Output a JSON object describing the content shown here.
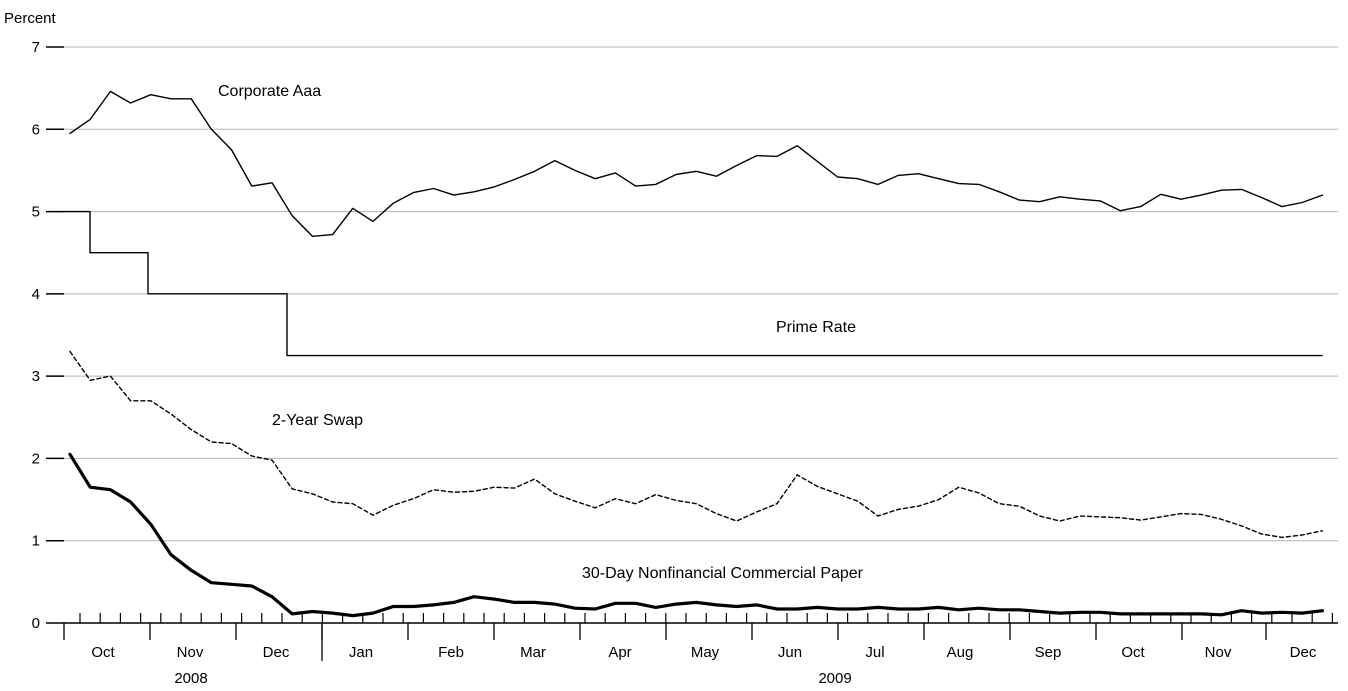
{
  "chart_data": {
    "type": "line",
    "ylabel": "Percent",
    "xlabel": "",
    "ylim": [
      0,
      7
    ],
    "yticks": [
      0,
      1,
      2,
      3,
      4,
      5,
      6,
      7
    ],
    "grid": true,
    "legend": "none",
    "x_unit": "week",
    "x_range": [
      "2008-09-26",
      "2009-12-18"
    ],
    "months": [
      {
        "label": "Oct"
      },
      {
        "label": "Nov"
      },
      {
        "label": "Dec"
      },
      {
        "label": "Jan"
      },
      {
        "label": "Feb"
      },
      {
        "label": "Mar"
      },
      {
        "label": "Apr"
      },
      {
        "label": "May"
      },
      {
        "label": "Jun"
      },
      {
        "label": "Jul"
      },
      {
        "label": "Aug"
      },
      {
        "label": "Sep"
      },
      {
        "label": "Oct"
      },
      {
        "label": "Nov"
      },
      {
        "label": "Dec"
      }
    ],
    "years": [
      {
        "label": "2008"
      },
      {
        "label": "2009"
      }
    ],
    "series": [
      {
        "name": "Corporate Aaa",
        "style": "solid",
        "color": "#000000",
        "values": [
          5.95,
          6.12,
          6.46,
          6.32,
          6.42,
          6.37,
          6.37,
          6.0,
          5.75,
          5.31,
          5.35,
          4.95,
          4.7,
          4.72,
          5.04,
          4.88,
          5.1,
          5.23,
          5.28,
          5.2,
          5.24,
          5.3,
          5.39,
          5.49,
          5.62,
          5.5,
          5.4,
          5.47,
          5.31,
          5.33,
          5.45,
          5.49,
          5.43,
          5.56,
          5.68,
          5.67,
          5.8,
          5.61,
          5.42,
          5.4,
          5.33,
          5.44,
          5.46,
          5.4,
          5.34,
          5.33,
          5.24,
          5.14,
          5.12,
          5.18,
          5.15,
          5.13,
          5.01,
          5.06,
          5.21,
          5.15,
          5.2,
          5.26,
          5.27,
          5.17,
          5.06,
          5.11,
          5.2
        ]
      },
      {
        "name": "Prime Rate",
        "style": "step",
        "color": "#000000",
        "values": [
          5.0,
          5.0,
          5.0,
          4.5,
          4.5,
          4.5,
          4.5,
          4.0,
          4.0,
          4.0,
          4.0,
          4.0,
          4.0,
          4.0,
          4.0,
          3.25,
          3.25,
          3.25,
          3.25,
          3.25,
          3.25,
          3.25,
          3.25,
          3.25,
          3.25,
          3.25,
          3.25,
          3.25,
          3.25,
          3.25,
          3.25,
          3.25,
          3.25,
          3.25,
          3.25,
          3.25,
          3.25,
          3.25,
          3.25,
          3.25,
          3.25,
          3.25,
          3.25,
          3.25,
          3.25,
          3.25,
          3.25,
          3.25,
          3.25,
          3.25,
          3.25,
          3.25,
          3.25,
          3.25,
          3.25,
          3.25,
          3.25,
          3.25,
          3.25,
          3.25,
          3.25,
          3.25,
          3.25,
          3.25,
          3.25,
          3.25,
          3.25,
          3.25,
          3.25,
          3.25
        ]
      },
      {
        "name": "2-Year Swap",
        "style": "dashed",
        "color": "#000000",
        "values": [
          3.3,
          2.95,
          3.0,
          2.7,
          2.7,
          2.54,
          2.35,
          2.2,
          2.18,
          2.03,
          1.98,
          1.63,
          1.57,
          1.47,
          1.45,
          1.31,
          1.43,
          1.51,
          1.62,
          1.59,
          1.6,
          1.65,
          1.64,
          1.75,
          1.57,
          1.48,
          1.4,
          1.51,
          1.45,
          1.56,
          1.49,
          1.45,
          1.33,
          1.24,
          1.35,
          1.45,
          1.8,
          1.66,
          1.57,
          1.48,
          1.3,
          1.38,
          1.42,
          1.5,
          1.65,
          1.58,
          1.45,
          1.42,
          1.3,
          1.24,
          1.3,
          1.29,
          1.28,
          1.25,
          1.29,
          1.33,
          1.32,
          1.26,
          1.18,
          1.08,
          1.04,
          1.07,
          1.12
        ]
      },
      {
        "name": "30-Day Nonfinancial Commercial Paper",
        "style": "bold",
        "color": "#000000",
        "values": [
          2.05,
          1.65,
          1.62,
          1.47,
          1.2,
          0.83,
          0.64,
          0.49,
          0.47,
          0.45,
          0.32,
          0.11,
          0.14,
          0.12,
          0.09,
          0.12,
          0.2,
          0.2,
          0.22,
          0.25,
          0.32,
          0.29,
          0.25,
          0.25,
          0.23,
          0.18,
          0.17,
          0.24,
          0.24,
          0.19,
          0.23,
          0.25,
          0.22,
          0.2,
          0.22,
          0.17,
          0.17,
          0.19,
          0.17,
          0.17,
          0.19,
          0.17,
          0.17,
          0.19,
          0.16,
          0.18,
          0.16,
          0.16,
          0.14,
          0.12,
          0.13,
          0.13,
          0.11,
          0.11,
          0.11,
          0.11,
          0.11,
          0.1,
          0.15,
          0.12,
          0.13,
          0.12,
          0.15
        ]
      }
    ]
  }
}
